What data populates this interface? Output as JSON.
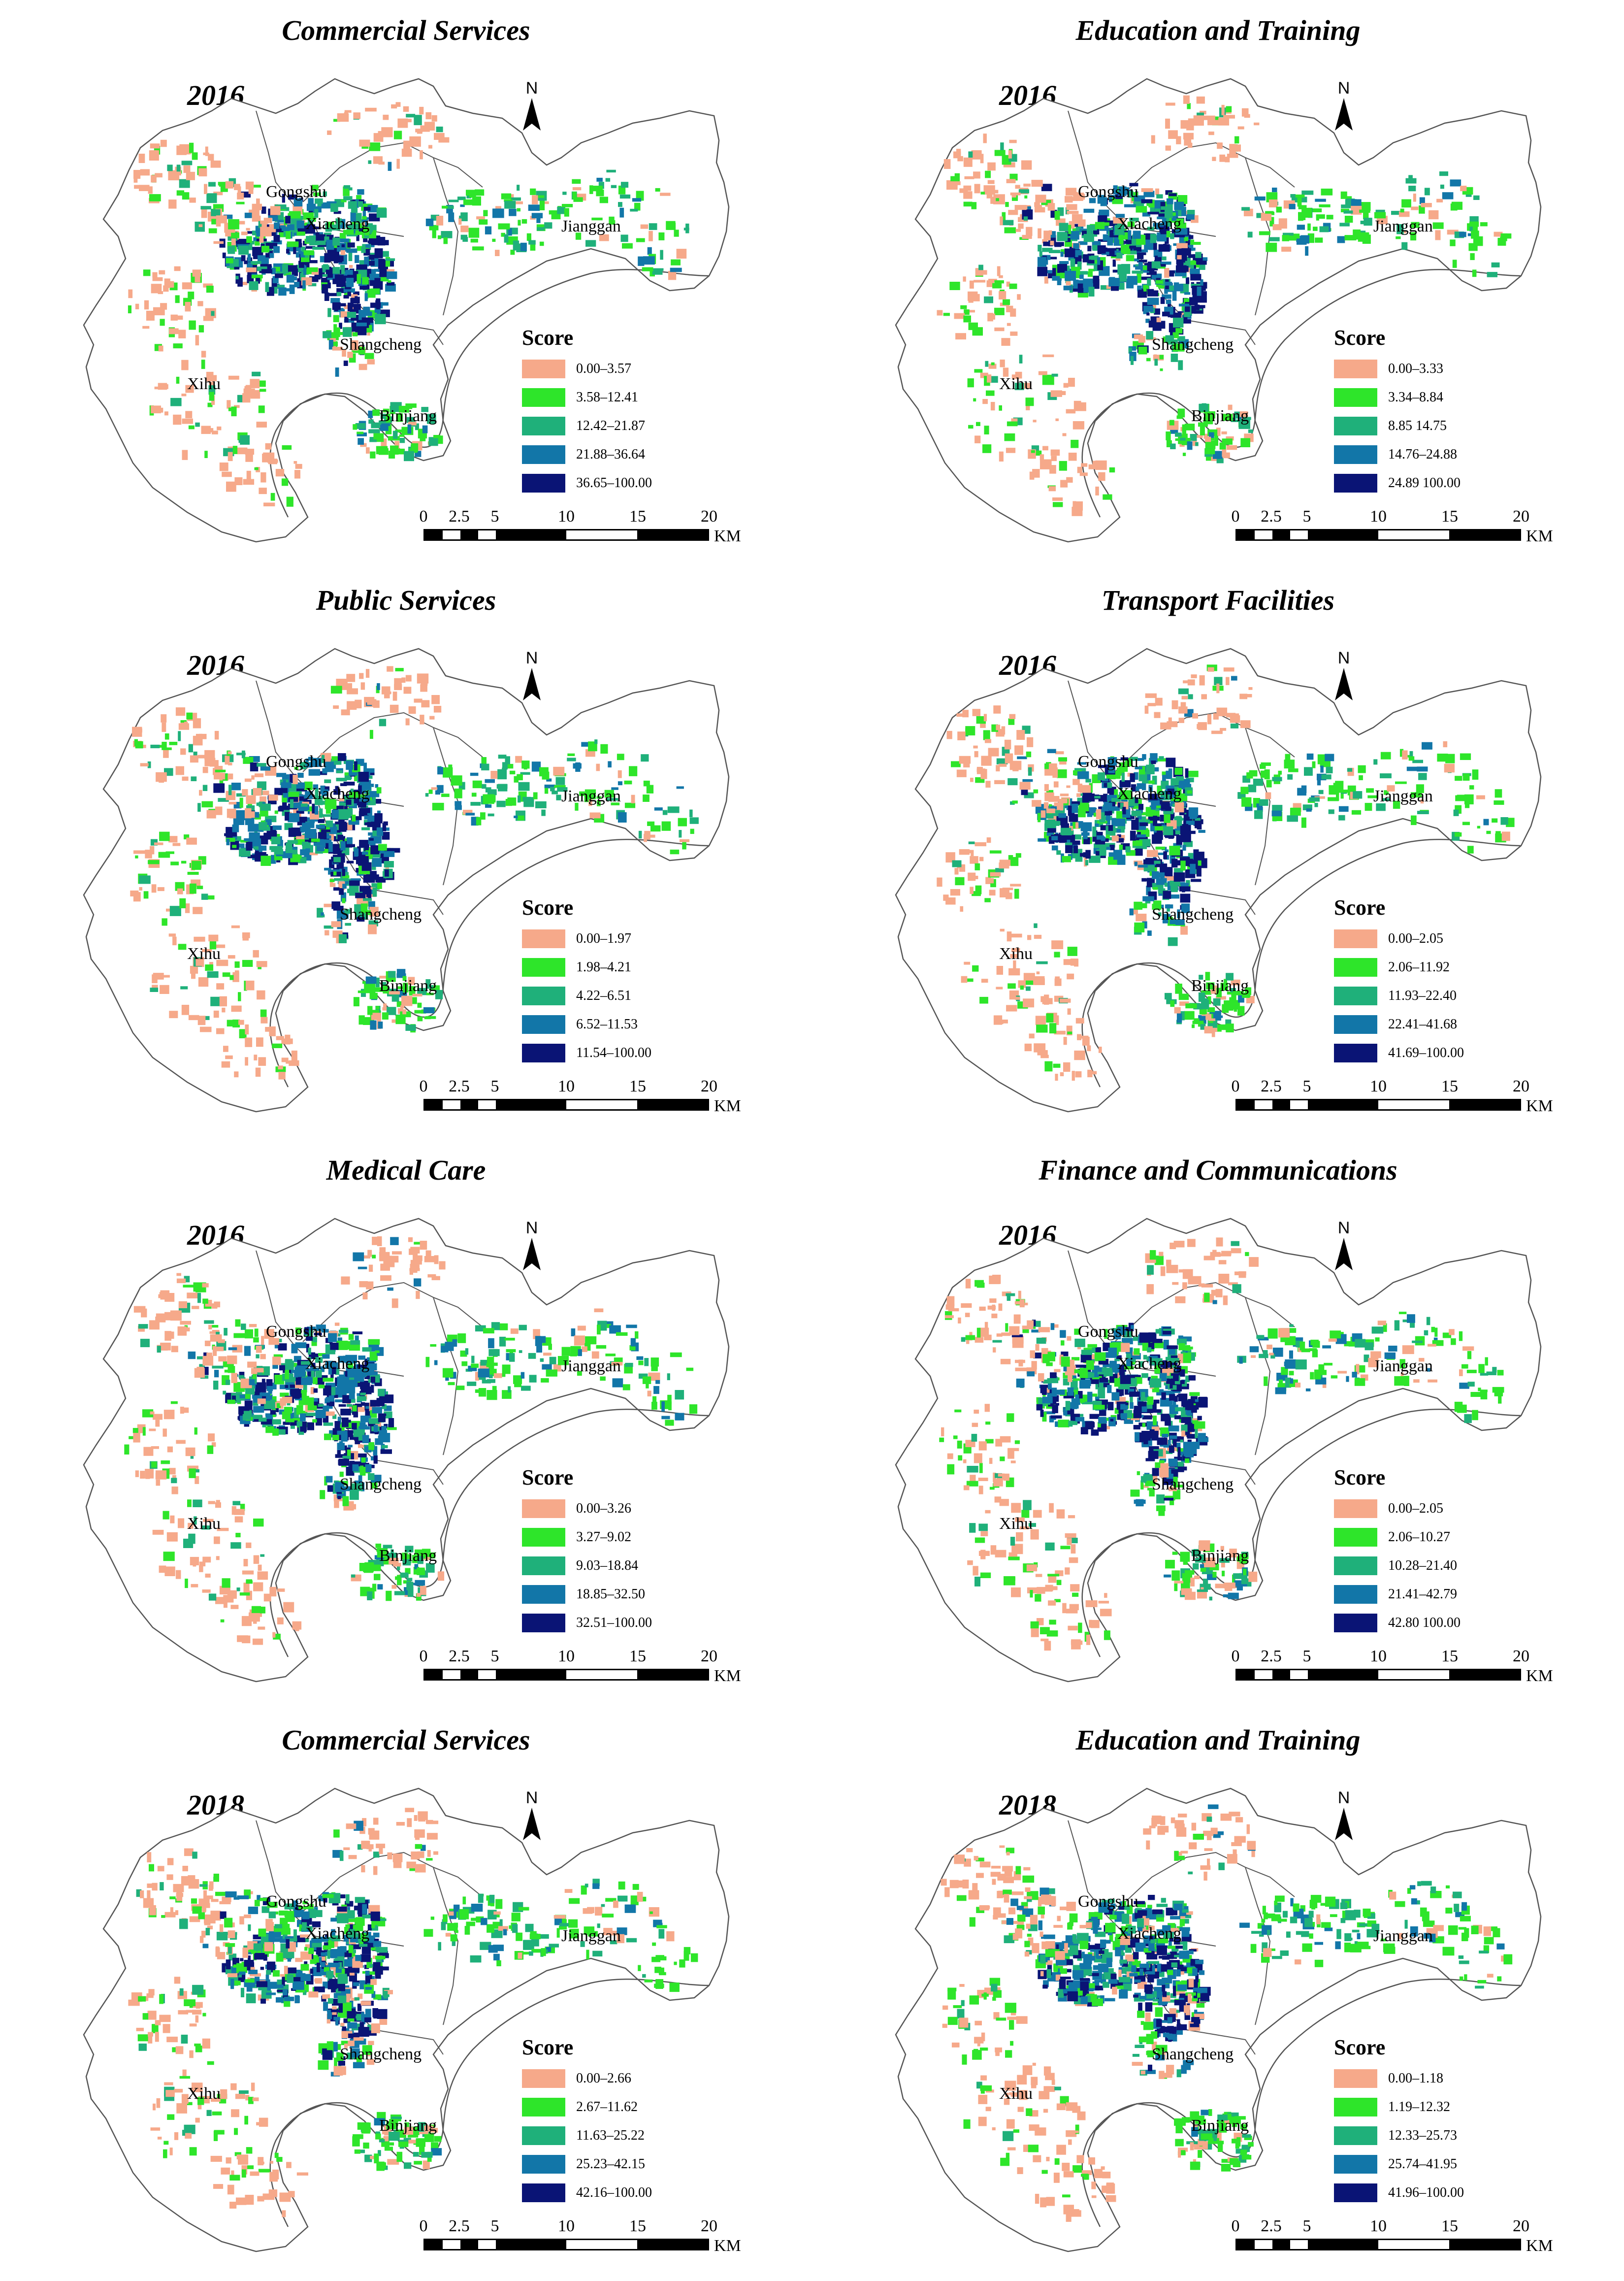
{
  "legend_title": "Score",
  "scale": {
    "ticks": [
      "0",
      "2.5",
      "5",
      "10",
      "15",
      "20"
    ],
    "unit": "KM"
  },
  "north_label": "N",
  "districts": [
    "Gongshu",
    "Xiacheng",
    "Jianggan",
    "Shangcheng",
    "Xihu",
    "Binjiang"
  ],
  "class_colors": [
    "#F6A98A",
    "#2EE52A",
    "#1FB07A",
    "#1276A8",
    "#0A1475"
  ],
  "panels": [
    {
      "title": "Commercial Services",
      "year": "2016",
      "classes": [
        "0.00–3.57",
        "3.58–12.41",
        "12.42–21.87",
        "21.88–36.64",
        "36.65–100.00"
      ]
    },
    {
      "title": "Education and Training",
      "year": "2016",
      "classes": [
        "0.00–3.33",
        "3.34–8.84",
        "8.85  14.75",
        "14.76–24.88",
        "24.89  100.00"
      ]
    },
    {
      "title": "Public Services",
      "year": "2016",
      "classes": [
        "0.00–1.97",
        "1.98–4.21",
        "4.22–6.51",
        "6.52–11.53",
        "11.54–100.00"
      ]
    },
    {
      "title": "Transport Facilities",
      "year": "2016",
      "classes": [
        "0.00–2.05",
        "2.06–11.92",
        "11.93–22.40",
        "22.41–41.68",
        "41.69–100.00"
      ]
    },
    {
      "title": "Medical Care",
      "year": "2016",
      "classes": [
        "0.00–3.26",
        "3.27–9.02",
        "9.03–18.84",
        "18.85–32.50",
        "32.51–100.00"
      ]
    },
    {
      "title": "Finance and Communications",
      "year": "2016",
      "classes": [
        "0.00–2.05",
        "2.06–10.27",
        "10.28–21.40",
        "21.41–42.79",
        "42.80  100.00"
      ]
    },
    {
      "title": "Commercial Services",
      "year": "2018",
      "classes": [
        "0.00–2.66",
        "2.67–11.62",
        "11.63–25.22",
        "25.23–42.15",
        "42.16–100.00"
      ]
    },
    {
      "title": "Education and Training",
      "year": "2018",
      "classes": [
        "0.00–1.18",
        "1.19–12.32",
        "12.33–25.73",
        "25.74–41.95",
        "41.96–100.00"
      ]
    }
  ]
}
